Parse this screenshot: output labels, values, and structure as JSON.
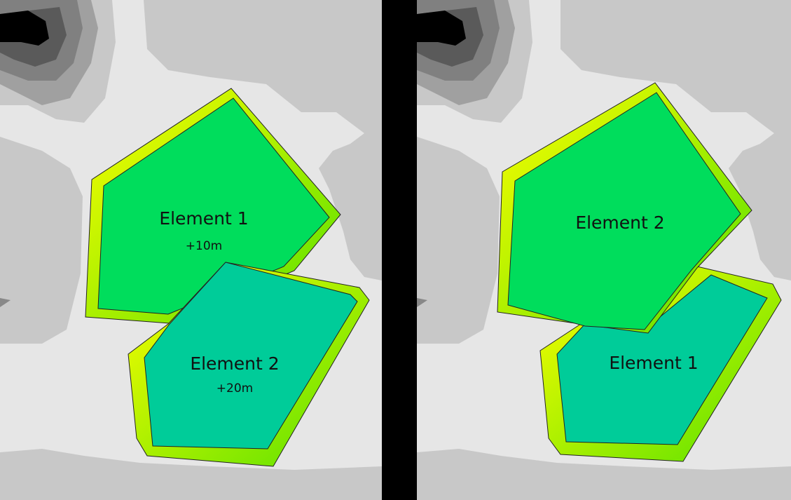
{
  "left_panel": {
    "upper_element": {
      "label": "Element 1",
      "offset": "+10m"
    },
    "lower_element": {
      "label": "Element 2",
      "offset": "+20m"
    }
  },
  "right_panel": {
    "upper_element": {
      "label": "Element 2"
    },
    "lower_element": {
      "label": "Element 1"
    }
  },
  "colors": {
    "upper_fill": "#00dd5c",
    "lower_fill": "#00cc99",
    "edge_outer": "#ffff00",
    "terrain_light": "#e6e6e6",
    "terrain_mid": "#c8c8c8",
    "terrain_dark": "#000000"
  }
}
